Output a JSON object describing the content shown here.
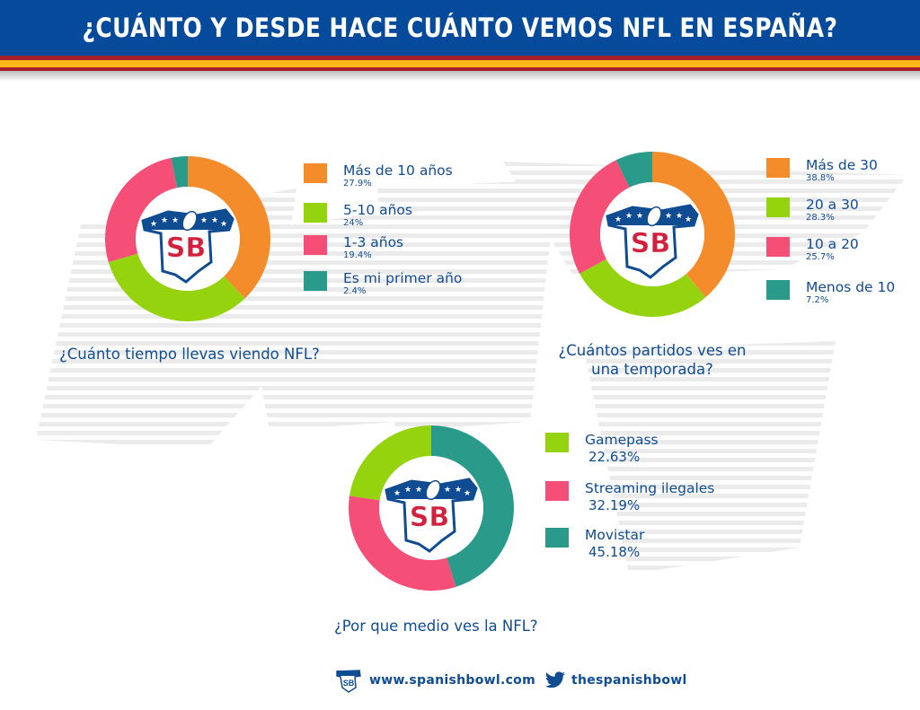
{
  "header": {
    "title": "¿Cuánto y desde hace cuánto vemos NFL en España?",
    "colors": {
      "blue": "#054a9b",
      "red": "#a31f2a",
      "yellow": "#fdb817"
    }
  },
  "logo": {
    "text": "SB"
  },
  "colors": {
    "orange": "#f58c2c",
    "green": "#95d30f",
    "pink": "#f54f78",
    "teal": "#2a9b8a",
    "text": "#0f4c92"
  },
  "chart_data": [
    {
      "type": "pie",
      "donut": true,
      "title": "¿Cuánto tiempo llevas viendo NFL?",
      "categories": [
        "Más de 10 años",
        "5-10 años",
        "1-3 años",
        "Es mi primer año"
      ],
      "values": [
        27.9,
        24,
        19.4,
        2.4
      ],
      "labels": [
        "27.9%",
        "24%",
        "19.4%",
        "2.4%"
      ],
      "colors": [
        "#f58c2c",
        "#95d30f",
        "#f54f78",
        "#2a9b8a"
      ],
      "legend": "right"
    },
    {
      "type": "pie",
      "donut": true,
      "title": "¿Cuántos partidos ves en una temporada?",
      "title_lines": [
        "¿Cuántos partidos ves en",
        "una temporada?"
      ],
      "categories": [
        "Más de 30",
        "20 a 30",
        "10 a 20",
        "Menos de 10"
      ],
      "values": [
        38.8,
        28.3,
        25.7,
        7.2
      ],
      "labels": [
        "38.8%",
        "28.3%",
        "25.7%",
        "7.2%"
      ],
      "colors": [
        "#f58c2c",
        "#95d30f",
        "#f54f78",
        "#2a9b8a"
      ],
      "legend": "right"
    },
    {
      "type": "pie",
      "donut": true,
      "title": "¿Por que medio ves la NFL?",
      "categories": [
        "Gamepass",
        "Streaming ilegales",
        "Movistar"
      ],
      "values": [
        22.63,
        32.19,
        45.18
      ],
      "labels": [
        "22.63%",
        "32.19%",
        "45.18%"
      ],
      "colors": [
        "#95d30f",
        "#f54f78",
        "#2a9b8a"
      ],
      "draw_order": [
        "Movistar",
        "Streaming ilegales",
        "Gamepass"
      ],
      "legend": "right"
    }
  ],
  "footer": {
    "url": "www.spanishbowl.com",
    "twitter_handle": "thespanishbowl"
  }
}
